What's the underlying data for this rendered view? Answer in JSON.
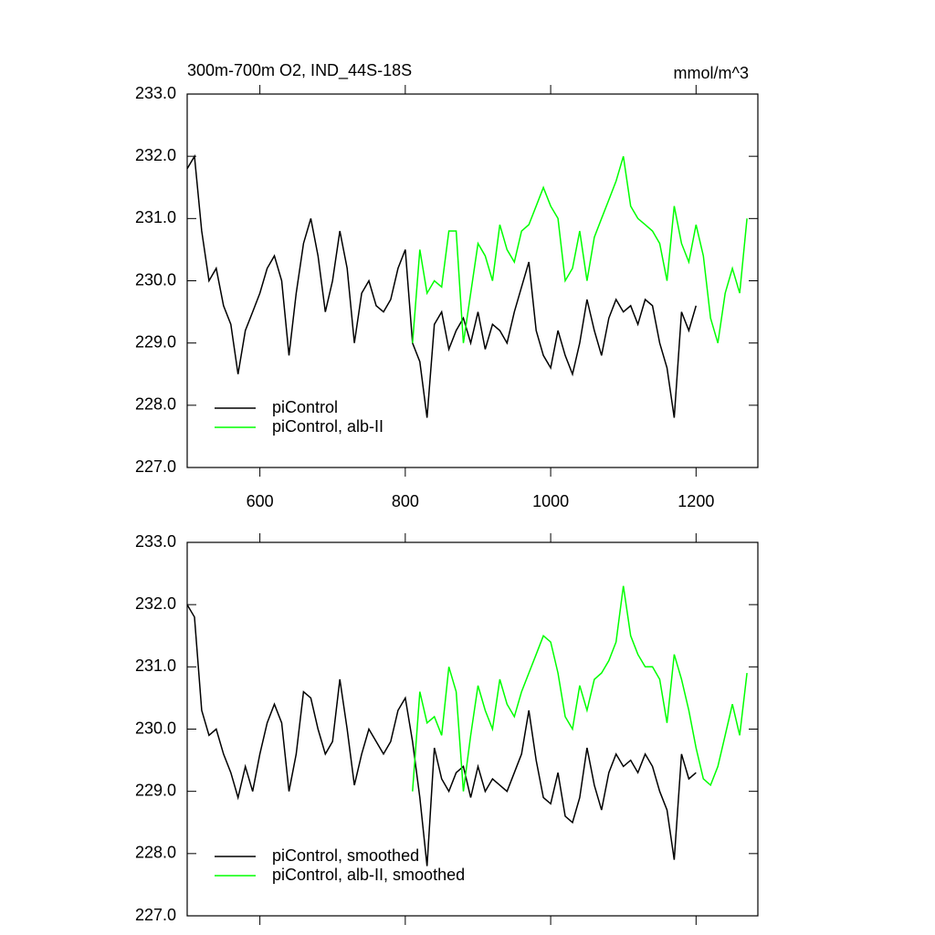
{
  "chart_data": [
    {
      "type": "line",
      "title": "300m-700m O2, IND_44S-18S",
      "subtitle": "mmol/m^3",
      "xlim": [
        500,
        1285
      ],
      "xticks": [
        600,
        800,
        1000,
        1200
      ],
      "show_xtick_labels": true,
      "ylim": [
        227,
        233
      ],
      "yticks": [
        {
          "value": 227,
          "label": "227.0"
        },
        {
          "value": 228,
          "label": "228.0"
        },
        {
          "value": 229,
          "label": "229.0"
        },
        {
          "value": 230,
          "label": "230.0"
        },
        {
          "value": 231,
          "label": "231.0"
        },
        {
          "value": 232,
          "label": "232.0"
        },
        {
          "value": 233,
          "label": "233.0"
        }
      ],
      "legend": "lower left",
      "series": [
        {
          "name": "piControl",
          "color": "#000000",
          "x": [
            500,
            510,
            520,
            530,
            540,
            550,
            560,
            570,
            580,
            590,
            600,
            610,
            620,
            630,
            640,
            650,
            660,
            670,
            680,
            690,
            700,
            710,
            720,
            730,
            740,
            750,
            760,
            770,
            780,
            790,
            800,
            810,
            820,
            830,
            840,
            850,
            860,
            870,
            880,
            890,
            900,
            910,
            920,
            930,
            940,
            950,
            960,
            970,
            980,
            990,
            1000,
            1010,
            1020,
            1030,
            1040,
            1050,
            1060,
            1070,
            1080,
            1090,
            1100,
            1110,
            1120,
            1130,
            1140,
            1150,
            1160,
            1170,
            1180,
            1190,
            1200
          ],
          "values": [
            231.8,
            232.0,
            230.8,
            230.0,
            230.2,
            229.6,
            229.3,
            228.5,
            229.2,
            229.5,
            229.8,
            230.2,
            230.4,
            230.0,
            228.8,
            229.8,
            230.6,
            231.0,
            230.4,
            229.5,
            230.0,
            230.8,
            230.2,
            229.0,
            229.8,
            230.0,
            229.6,
            229.5,
            229.7,
            230.2,
            230.5,
            229.0,
            228.7,
            227.8,
            229.3,
            229.5,
            228.9,
            229.2,
            229.4,
            229.0,
            229.5,
            228.9,
            229.3,
            229.2,
            229.0,
            229.5,
            229.9,
            230.3,
            229.2,
            228.8,
            228.6,
            229.2,
            228.8,
            228.5,
            229.0,
            229.7,
            229.2,
            228.8,
            229.4,
            229.7,
            229.5,
            229.6,
            229.3,
            229.7,
            229.6,
            229.0,
            228.6,
            227.8,
            229.5,
            229.2,
            229.6
          ]
        },
        {
          "name": "piControl, alb-II",
          "color": "#00ff00",
          "x": [
            810,
            820,
            830,
            840,
            850,
            860,
            870,
            880,
            890,
            900,
            910,
            920,
            930,
            940,
            950,
            960,
            970,
            980,
            990,
            1000,
            1010,
            1020,
            1030,
            1040,
            1050,
            1060,
            1070,
            1080,
            1090,
            1100,
            1110,
            1120,
            1130,
            1140,
            1150,
            1160,
            1170,
            1180,
            1190,
            1200,
            1210,
            1220,
            1230,
            1240,
            1250,
            1260,
            1270
          ],
          "values": [
            229.0,
            230.5,
            229.8,
            230.0,
            229.9,
            230.8,
            230.8,
            229.0,
            229.8,
            230.6,
            230.4,
            230.0,
            230.9,
            230.5,
            230.3,
            230.8,
            230.9,
            231.2,
            231.5,
            231.2,
            231.0,
            230.0,
            230.2,
            230.8,
            230.0,
            230.7,
            231.0,
            231.3,
            231.6,
            232.0,
            231.2,
            231.0,
            230.9,
            230.8,
            230.6,
            230.0,
            231.2,
            230.6,
            230.3,
            230.9,
            230.4,
            229.4,
            229.0,
            229.8,
            230.2,
            229.8,
            231.0
          ]
        }
      ]
    },
    {
      "type": "line",
      "xlim": [
        500,
        1285
      ],
      "xticks": [
        600,
        800,
        1000,
        1200
      ],
      "show_xtick_labels": false,
      "ylim": [
        227,
        233
      ],
      "yticks": [
        {
          "value": 227,
          "label": "227.0"
        },
        {
          "value": 228,
          "label": "228.0"
        },
        {
          "value": 229,
          "label": "229.0"
        },
        {
          "value": 230,
          "label": "230.0"
        },
        {
          "value": 231,
          "label": "231.0"
        },
        {
          "value": 232,
          "label": "232.0"
        },
        {
          "value": 233,
          "label": "233.0"
        }
      ],
      "legend": "lower left",
      "series": [
        {
          "name": "piControl, smoothed",
          "color": "#000000",
          "x": [
            500,
            510,
            520,
            530,
            540,
            550,
            560,
            570,
            580,
            590,
            600,
            610,
            620,
            630,
            640,
            650,
            660,
            670,
            680,
            690,
            700,
            710,
            720,
            730,
            740,
            750,
            760,
            770,
            780,
            790,
            800,
            810,
            820,
            830,
            840,
            850,
            860,
            870,
            880,
            890,
            900,
            910,
            920,
            930,
            940,
            950,
            960,
            970,
            980,
            990,
            1000,
            1010,
            1020,
            1030,
            1040,
            1050,
            1060,
            1070,
            1080,
            1090,
            1100,
            1110,
            1120,
            1130,
            1140,
            1150,
            1160,
            1170,
            1180,
            1190,
            1200
          ],
          "values": [
            232.0,
            231.8,
            230.3,
            229.9,
            230.0,
            229.6,
            229.3,
            228.9,
            229.4,
            229.0,
            229.6,
            230.1,
            230.4,
            230.1,
            229.0,
            229.6,
            230.6,
            230.5,
            230.0,
            229.6,
            229.8,
            230.8,
            230.0,
            229.1,
            229.6,
            230.0,
            229.8,
            229.6,
            229.8,
            230.3,
            230.5,
            229.8,
            228.9,
            227.8,
            229.7,
            229.2,
            229.0,
            229.3,
            229.4,
            228.9,
            229.4,
            229.0,
            229.2,
            229.1,
            229.0,
            229.3,
            229.6,
            230.3,
            229.5,
            228.9,
            228.8,
            229.3,
            228.6,
            228.5,
            228.9,
            229.7,
            229.1,
            228.7,
            229.3,
            229.6,
            229.4,
            229.5,
            229.3,
            229.6,
            229.4,
            229.0,
            228.7,
            227.9,
            229.6,
            229.2,
            229.3
          ]
        },
        {
          "name": "piControl, alb-II, smoothed",
          "color": "#00ff00",
          "x": [
            810,
            820,
            830,
            840,
            850,
            860,
            870,
            880,
            890,
            900,
            910,
            920,
            930,
            940,
            950,
            960,
            970,
            980,
            990,
            1000,
            1010,
            1020,
            1030,
            1040,
            1050,
            1060,
            1070,
            1080,
            1090,
            1100,
            1110,
            1120,
            1130,
            1140,
            1150,
            1160,
            1170,
            1180,
            1190,
            1200,
            1210,
            1220,
            1230,
            1240,
            1250,
            1260,
            1270
          ],
          "values": [
            229.0,
            230.6,
            230.1,
            230.2,
            229.9,
            231.0,
            230.6,
            229.0,
            229.9,
            230.7,
            230.3,
            230.0,
            230.8,
            230.4,
            230.2,
            230.6,
            230.9,
            231.2,
            231.5,
            231.4,
            230.9,
            230.2,
            230.0,
            230.7,
            230.3,
            230.8,
            230.9,
            231.1,
            231.4,
            232.3,
            231.5,
            231.2,
            231.0,
            231.0,
            230.8,
            230.1,
            231.2,
            230.8,
            230.3,
            229.7,
            229.2,
            229.1,
            229.4,
            229.9,
            230.4,
            229.9,
            230.9
          ]
        }
      ]
    }
  ]
}
